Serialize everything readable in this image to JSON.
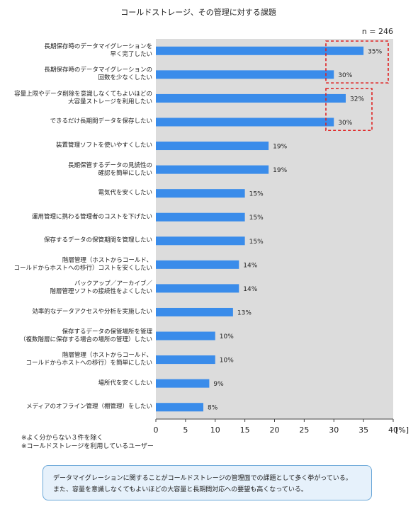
{
  "chart_data": {
    "type": "bar",
    "orientation": "horizontal",
    "title": "コールドストレージ、その管理に対する課題",
    "sample_size": "n = 246",
    "x_unit": "[%]",
    "categories": [
      "長期保存時のデータマイグレーションを\n早く完了したい",
      "長期保存時のデータマイグレーションの\n回数を少なくしたい",
      "容量上限やデータ削除を意識しなくてもよいほどの\n大容量ストレージを利用したい",
      "できるだけ長期間データを保存したい",
      "装置管理ソフトを使いやすくしたい",
      "長期保管するデータの見読性の\n確認を簡単にしたい",
      "電気代を安くしたい",
      "運用管理に携わる管理者のコストを下げたい",
      "保存するデータの保管期間を管理したい",
      "階層管理（ホストからコールド、\nコールドからホストへの移行）コストを安くしたい",
      "バックアップ／アーカイブ／\n階層管理ソフトの接続性をよくしたい",
      "効率的なデータアクセスや分析を実施したい",
      "保存するデータの保管場所を管理\n（複数階層に保存する場合の場所の管理）したい",
      "階層管理（ホストからコールド、\nコールドからホストへの移行）を簡単にしたい",
      "場所代を安くしたい",
      "メディアのオフライン管理（棚管理）をしたい"
    ],
    "values": [
      35,
      30,
      32,
      30,
      19,
      19,
      15,
      15,
      15,
      14,
      14,
      13,
      10,
      10,
      9,
      8
    ],
    "value_labels": [
      "35%",
      "30%",
      "32%",
      "30%",
      "19%",
      "19%",
      "15%",
      "15%",
      "15%",
      "14%",
      "14%",
      "13%",
      "10%",
      "10%",
      "9%",
      "8%"
    ],
    "color": "#3a8cea",
    "xlim": [
      0,
      40
    ],
    "xticks": [
      0,
      5,
      10,
      15,
      20,
      25,
      30,
      35,
      40
    ],
    "notes": [
      "※よく分からない３件を除く",
      "※コールドストレージを利用しているユーザー"
    ]
  },
  "summary": [
    "データマイグレーションに関することがコールドストレージの管理面での課題として多く挙がっている。",
    "また、容量を意識しなくてもよいほどの大容量と長期間対応への要望も高くなっている。"
  ]
}
